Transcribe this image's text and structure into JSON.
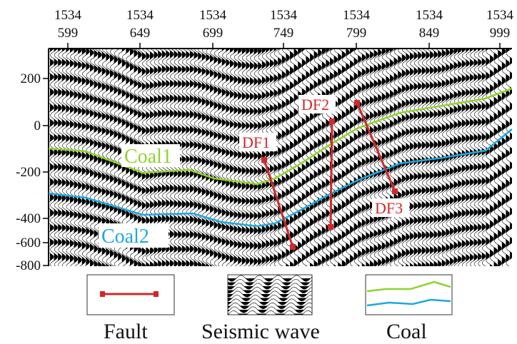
{
  "top_axis": {
    "ticks": [
      {
        "line": "1534",
        "trace": "599"
      },
      {
        "line": "1534",
        "trace": "649"
      },
      {
        "line": "1534",
        "trace": "699"
      },
      {
        "line": "1534",
        "trace": "749"
      },
      {
        "line": "1534",
        "trace": "799"
      },
      {
        "line": "1534",
        "trace": "849"
      },
      {
        "line": "1534",
        "trace": "999"
      }
    ]
  },
  "left_axis": {
    "ticks": [
      "200",
      "0",
      "-200",
      "-400",
      "-600",
      "-800"
    ]
  },
  "horizons": {
    "coal1": {
      "label": "Coal1"
    },
    "coal2": {
      "label": "Coal2"
    }
  },
  "faults": [
    {
      "label": "DF1"
    },
    {
      "label": "DF2"
    },
    {
      "label": "DF3"
    }
  ],
  "legend": {
    "fault": {
      "caption": "Fault"
    },
    "seismic": {
      "caption": "Seismic wave"
    },
    "coal": {
      "caption": "Coal"
    }
  },
  "colors": {
    "fault": "#d0282c",
    "coal1": "#8fd42c",
    "coal2": "#1ea8dc",
    "fault_label": "#d0282c",
    "coal1_label": "#8fd42c",
    "coal2_label": "#1ea8dc",
    "seismic": "#000000"
  }
}
